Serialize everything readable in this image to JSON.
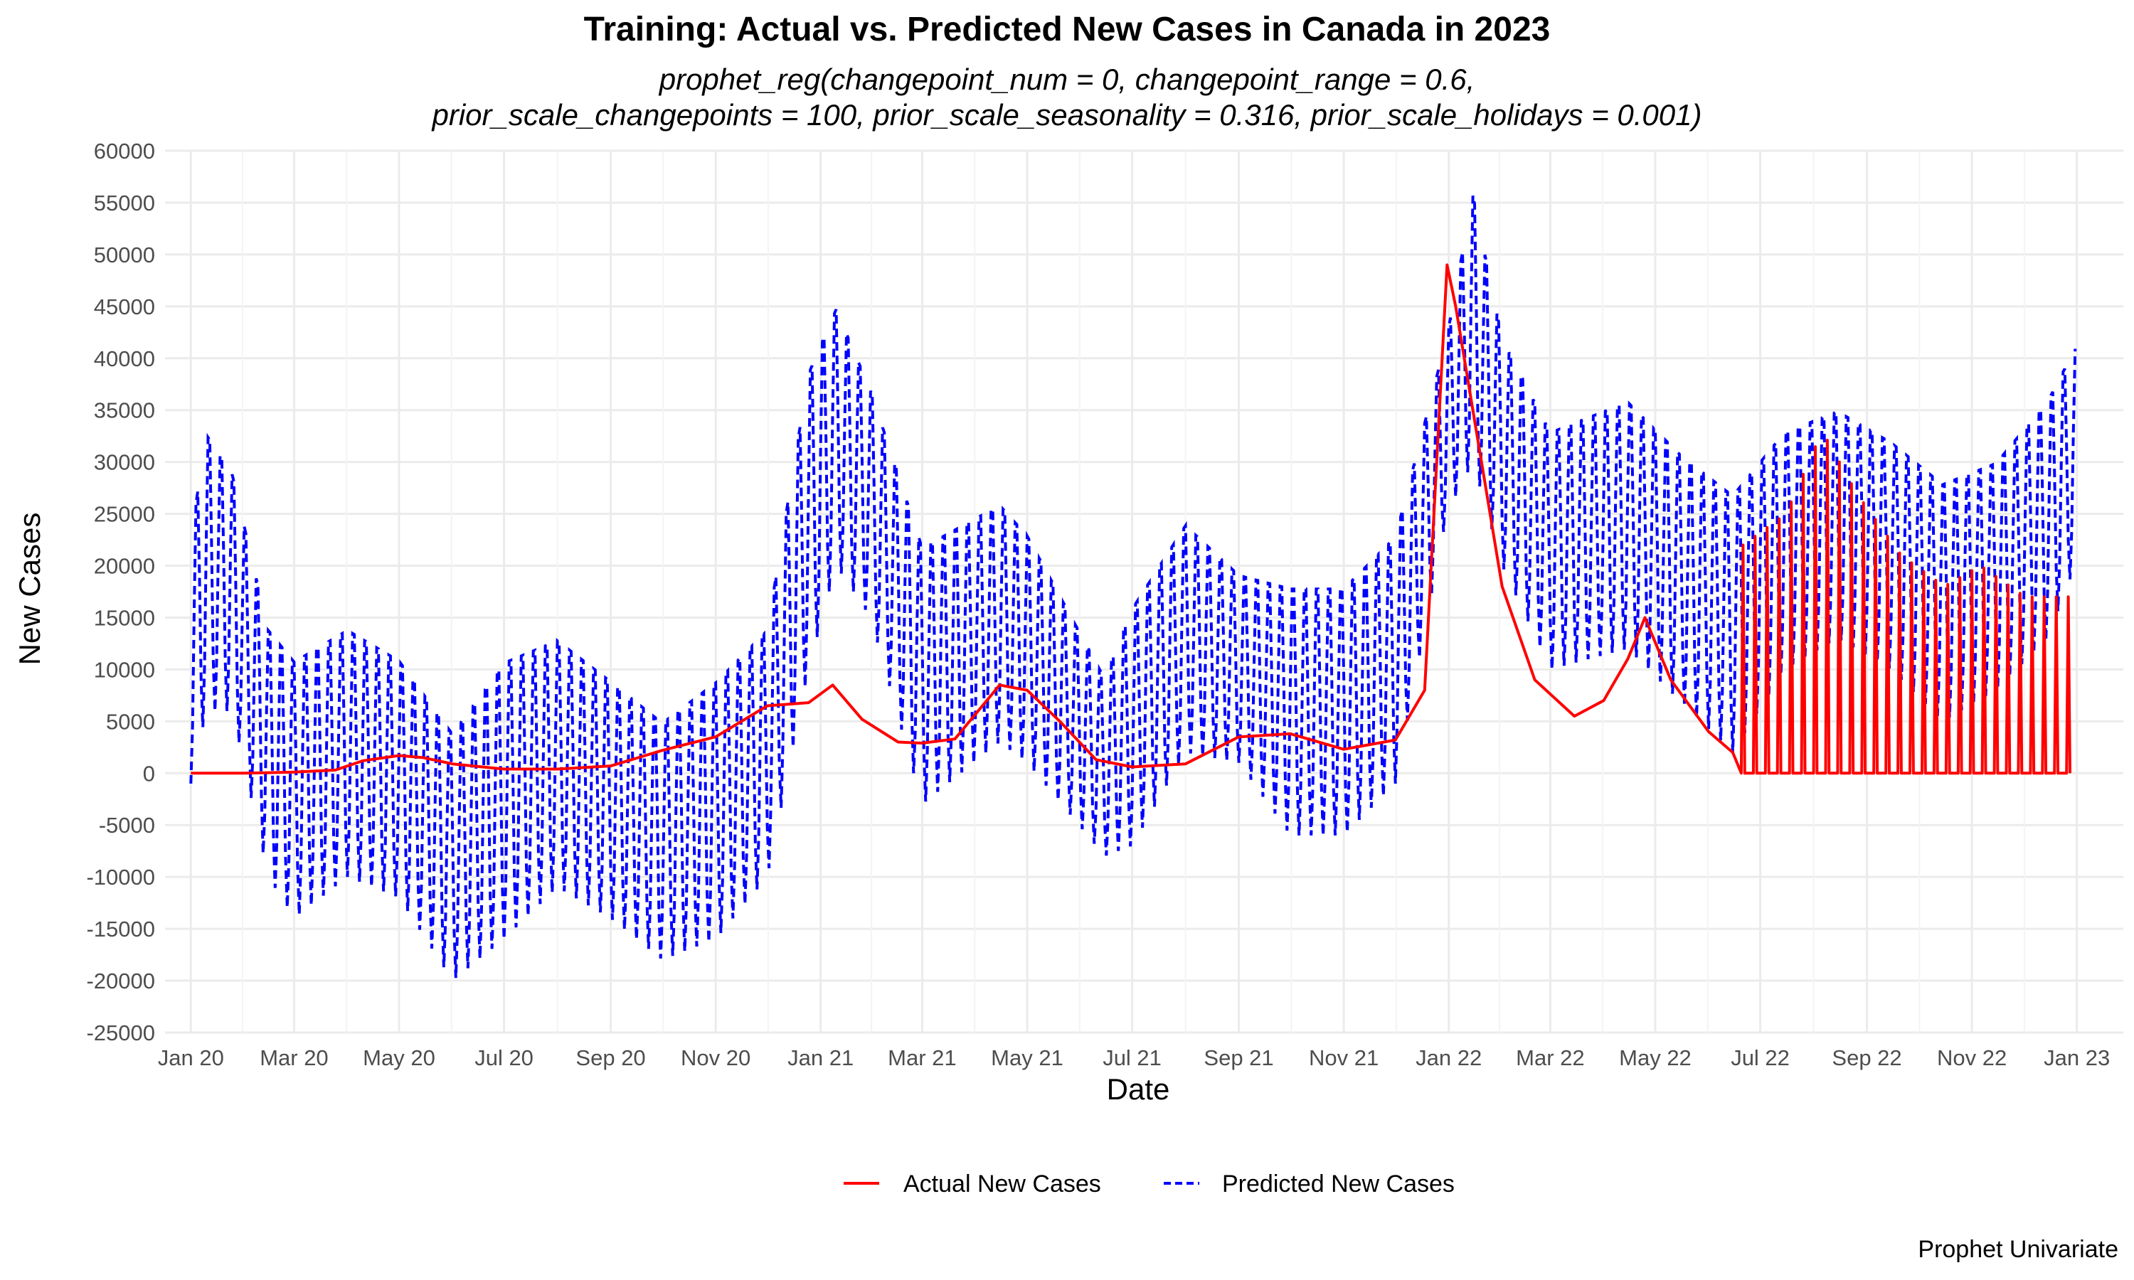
{
  "chart_data": {
    "type": "line",
    "title": "Training: Actual vs. Predicted New Cases in Canada in 2023",
    "subtitle_lines": [
      "prophet_reg(changepoint_num = 0, changepoint_range = 0.6,",
      "prior_scale_changepoints = 100, prior_scale_seasonality = 0.316, prior_scale_holidays = 0.001)"
    ],
    "xlabel": "Date",
    "ylabel": "New Cases",
    "caption": "Prophet Univariate",
    "ylim": [
      -25000,
      60000
    ],
    "y_ticks": [
      60000,
      55000,
      50000,
      45000,
      40000,
      35000,
      30000,
      25000,
      20000,
      15000,
      10000,
      5000,
      0,
      -5000,
      -10000,
      -15000,
      -20000,
      -25000
    ],
    "xlim": [
      "2019-12-17",
      "2023-01-28"
    ],
    "x_ticks": [
      {
        "label": "Jan 20",
        "date": "2020-01-01"
      },
      {
        "label": "Mar 20",
        "date": "2020-03-01"
      },
      {
        "label": "May 20",
        "date": "2020-05-01"
      },
      {
        "label": "Jul 20",
        "date": "2020-07-01"
      },
      {
        "label": "Sep 20",
        "date": "2020-09-01"
      },
      {
        "label": "Nov 20",
        "date": "2020-11-01"
      },
      {
        "label": "Jan 21",
        "date": "2021-01-01"
      },
      {
        "label": "Mar 21",
        "date": "2021-03-01"
      },
      {
        "label": "May 21",
        "date": "2021-05-01"
      },
      {
        "label": "Jul 21",
        "date": "2021-07-01"
      },
      {
        "label": "Sep 21",
        "date": "2021-09-01"
      },
      {
        "label": "Nov 21",
        "date": "2021-11-01"
      },
      {
        "label": "Jan 22",
        "date": "2022-01-01"
      },
      {
        "label": "Mar 22",
        "date": "2022-03-01"
      },
      {
        "label": "May 22",
        "date": "2022-05-01"
      },
      {
        "label": "Jul 22",
        "date": "2022-07-01"
      },
      {
        "label": "Sep 22",
        "date": "2022-09-01"
      },
      {
        "label": "Nov 22",
        "date": "2022-11-01"
      },
      {
        "label": "Jan 23",
        "date": "2023-01-01"
      }
    ],
    "grid": true,
    "legend_position": "bottom",
    "series": [
      {
        "name": "Actual New Cases",
        "color": "#ff0000",
        "style": "solid",
        "points": [
          [
            "2020-01-01",
            0
          ],
          [
            "2020-02-01",
            0
          ],
          [
            "2020-03-01",
            100
          ],
          [
            "2020-03-25",
            300
          ],
          [
            "2020-04-10",
            1200
          ],
          [
            "2020-05-01",
            1700
          ],
          [
            "2020-05-15",
            1500
          ],
          [
            "2020-06-01",
            900
          ],
          [
            "2020-07-01",
            400
          ],
          [
            "2020-08-01",
            400
          ],
          [
            "2020-09-01",
            700
          ],
          [
            "2020-10-01",
            2200
          ],
          [
            "2020-11-01",
            3500
          ],
          [
            "2020-12-01",
            6500
          ],
          [
            "2020-12-25",
            6800
          ],
          [
            "2021-01-08",
            8500
          ],
          [
            "2021-01-25",
            5200
          ],
          [
            "2021-02-15",
            3000
          ],
          [
            "2021-03-01",
            2900
          ],
          [
            "2021-03-20",
            3300
          ],
          [
            "2021-04-15",
            8500
          ],
          [
            "2021-05-01",
            8000
          ],
          [
            "2021-05-20",
            5000
          ],
          [
            "2021-06-10",
            1300
          ],
          [
            "2021-07-01",
            600
          ],
          [
            "2021-08-01",
            900
          ],
          [
            "2021-09-01",
            3500
          ],
          [
            "2021-10-01",
            3800
          ],
          [
            "2021-11-01",
            2300
          ],
          [
            "2021-12-01",
            3200
          ],
          [
            "2021-12-18",
            8000
          ],
          [
            "2021-12-31",
            49000
          ],
          [
            "2022-01-05",
            45000
          ],
          [
            "2022-01-12",
            38000
          ],
          [
            "2022-01-20",
            30000
          ],
          [
            "2022-02-01",
            18000
          ],
          [
            "2022-02-20",
            9000
          ],
          [
            "2022-03-15",
            5500
          ],
          [
            "2022-04-01",
            7000
          ],
          [
            "2022-04-15",
            11000
          ],
          [
            "2022-04-25",
            15000
          ],
          [
            "2022-05-10",
            9000
          ],
          [
            "2022-06-01",
            4000
          ],
          [
            "2022-06-15",
            2000
          ]
        ],
        "weekly_spikes": {
          "start": "2022-06-20",
          "end": "2022-12-31",
          "period_days": 7,
          "baseline": 0,
          "peak_profile": [
            [
              "2022-06-20",
              22000
            ],
            [
              "2022-07-15",
              25000
            ],
            [
              "2022-08-05",
              33000
            ],
            [
              "2022-08-25",
              27000
            ],
            [
              "2022-09-20",
              21000
            ],
            [
              "2022-10-15",
              18000
            ],
            [
              "2022-11-05",
              20000
            ],
            [
              "2022-12-01",
              17000
            ],
            [
              "2022-12-31",
              17000
            ]
          ]
        }
      },
      {
        "name": "Predicted New Cases",
        "color": "#0000ff",
        "style": "dashed",
        "oscillation": {
          "period_days": 7,
          "envelope": [
            [
              "2020-01-01",
              -1000,
              24000
            ],
            [
              "2020-01-10",
              6000,
              34000
            ],
            [
              "2020-01-25",
              6000,
              30000
            ],
            [
              "2020-02-15",
              -10000,
              15000
            ],
            [
              "2020-03-01",
              -14000,
              12000
            ],
            [
              "2020-04-01",
              -10000,
              15000
            ],
            [
              "2020-05-01",
              -12000,
              12000
            ],
            [
              "2020-06-01",
              -20000,
              5000
            ],
            [
              "2020-07-01",
              -16000,
              12000
            ],
            [
              "2020-08-01",
              -11000,
              14000
            ],
            [
              "2020-09-01",
              -14000,
              10000
            ],
            [
              "2020-10-01",
              -18000,
              6000
            ],
            [
              "2020-11-01",
              -16000,
              10000
            ],
            [
              "2020-12-01",
              -10000,
              15000
            ],
            [
              "2020-12-25",
              10000,
              40000
            ],
            [
              "2021-01-10",
              20000,
              46000
            ],
            [
              "2021-01-30",
              15000,
              38000
            ],
            [
              "2021-03-01",
              -3000,
              23000
            ],
            [
              "2021-04-15",
              3000,
              27000
            ],
            [
              "2021-05-01",
              1000,
              24000
            ],
            [
              "2021-06-15",
              -8000,
              10000
            ],
            [
              "2021-07-01",
              -7000,
              17000
            ],
            [
              "2021-08-01",
              2000,
              25000
            ],
            [
              "2021-09-01",
              1000,
              20000
            ],
            [
              "2021-10-01",
              -6000,
              19000
            ],
            [
              "2021-11-01",
              -6000,
              19000
            ],
            [
              "2021-12-01",
              -1000,
              24000
            ],
            [
              "2021-12-31",
              25000,
              43000
            ],
            [
              "2022-01-15",
              30000,
              57000
            ],
            [
              "2022-02-01",
              20000,
              43000
            ],
            [
              "2022-03-01",
              10000,
              34000
            ],
            [
              "2022-04-15",
              12000,
              37000
            ],
            [
              "2022-05-15",
              7000,
              32000
            ],
            [
              "2022-06-15",
              2000,
              28000
            ],
            [
              "2022-07-15",
              10000,
              34000
            ],
            [
              "2022-08-15",
              13000,
              36000
            ],
            [
              "2022-09-15",
              10000,
              33000
            ],
            [
              "2022-10-15",
              5000,
              29000
            ],
            [
              "2022-11-15",
              8000,
              31000
            ],
            [
              "2022-12-15",
              13000,
              37000
            ],
            [
              "2022-12-31",
              20000,
              42000
            ]
          ]
        }
      }
    ]
  }
}
